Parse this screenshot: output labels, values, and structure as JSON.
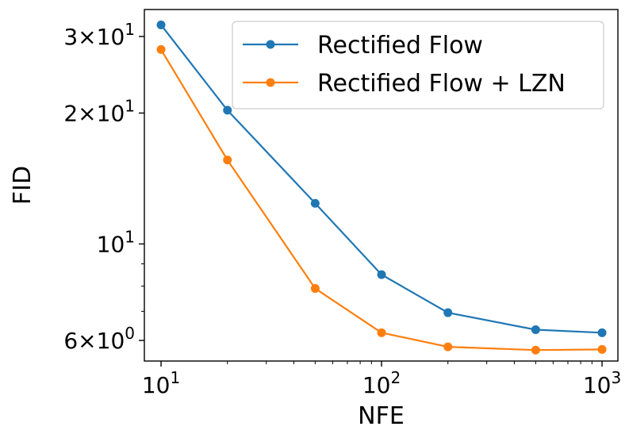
{
  "chart_data": {
    "type": "line",
    "title": "",
    "xlabel": "NFE",
    "ylabel": "FID",
    "xscale": "log",
    "yscale": "log",
    "x": [
      10,
      20,
      50,
      100,
      200,
      500,
      1000
    ],
    "xlim": [
      8.4,
      1180
    ],
    "ylim": [
      5.38,
      34.6
    ],
    "x_ticks": [
      {
        "value": 10,
        "base": "10",
        "exp": "1"
      },
      {
        "value": 100,
        "base": "10",
        "exp": "2"
      },
      {
        "value": 1000,
        "base": "10",
        "exp": "3"
      }
    ],
    "y_ticks": [
      {
        "value": 6,
        "mant": "6",
        "base": "10",
        "exp": "0"
      },
      {
        "value": 10,
        "mant": "",
        "base": "10",
        "exp": "1"
      },
      {
        "value": 20,
        "mant": "2",
        "base": "10",
        "exp": "1"
      },
      {
        "value": 30,
        "mant": "3",
        "base": "10",
        "exp": "1"
      }
    ],
    "legend_position": "top-right",
    "grid": false,
    "series": [
      {
        "name": "Rectified Flow",
        "color": "#1f77b4",
        "values": [
          31.9,
          20.3,
          12.4,
          8.5,
          6.95,
          6.35,
          6.25
        ]
      },
      {
        "name": "Rectified Flow + LZN",
        "color": "#ff7f0e",
        "values": [
          28.0,
          15.6,
          7.9,
          6.25,
          5.8,
          5.7,
          5.72
        ]
      }
    ]
  }
}
